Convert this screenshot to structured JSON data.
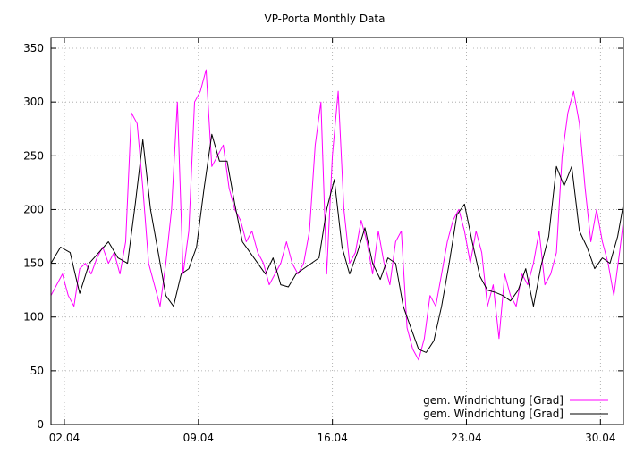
{
  "chart_data": {
    "type": "line",
    "title": "VP-Porta Monthly Data",
    "xlabel": "",
    "ylabel": "",
    "xlim": [
      1.3,
      31.2
    ],
    "ylim": [
      0,
      360
    ],
    "yticks": [
      0,
      50,
      100,
      150,
      200,
      250,
      300,
      350
    ],
    "xticks": [
      {
        "pos": 2,
        "label": "02.04"
      },
      {
        "pos": 9,
        "label": "09.04"
      },
      {
        "pos": 16,
        "label": "16.04"
      },
      {
        "pos": 23,
        "label": "23.04"
      },
      {
        "pos": 30,
        "label": "30.04"
      }
    ],
    "grid": true,
    "legend_position": "bottom-right",
    "series": [
      {
        "name": "gem. Windrichtung [Grad]",
        "color": "#ff00ff",
        "style": "raw",
        "x": [
          1.3,
          1.6,
          1.9,
          2.2,
          2.5,
          2.8,
          3.1,
          3.4,
          3.7,
          4.0,
          4.3,
          4.6,
          4.9,
          5.2,
          5.5,
          5.8,
          6.1,
          6.4,
          6.7,
          7.0,
          7.3,
          7.6,
          7.9,
          8.2,
          8.5,
          8.8,
          9.1,
          9.4,
          9.7,
          10.0,
          10.3,
          10.6,
          10.9,
          11.2,
          11.5,
          11.8,
          12.1,
          12.4,
          12.7,
          13.0,
          13.3,
          13.6,
          13.9,
          14.2,
          14.5,
          14.8,
          15.1,
          15.4,
          15.7,
          16.0,
          16.3,
          16.6,
          16.9,
          17.2,
          17.5,
          17.8,
          18.1,
          18.4,
          18.7,
          19.0,
          19.3,
          19.6,
          19.9,
          20.2,
          20.5,
          20.8,
          21.1,
          21.4,
          21.7,
          22.0,
          22.3,
          22.6,
          22.9,
          23.2,
          23.5,
          23.8,
          24.1,
          24.4,
          24.7,
          25.0,
          25.3,
          25.6,
          25.9,
          26.2,
          26.5,
          26.8,
          27.1,
          27.4,
          27.7,
          28.0,
          28.3,
          28.6,
          28.9,
          29.2,
          29.5,
          29.8,
          30.1,
          30.4,
          30.7,
          31.0,
          31.2
        ],
        "y": [
          120,
          130,
          140,
          120,
          110,
          145,
          150,
          140,
          155,
          165,
          150,
          160,
          140,
          170,
          290,
          280,
          220,
          150,
          130,
          110,
          150,
          200,
          300,
          140,
          180,
          300,
          310,
          330,
          240,
          250,
          260,
          220,
          200,
          190,
          170,
          180,
          160,
          150,
          130,
          140,
          150,
          170,
          150,
          140,
          150,
          180,
          260,
          300,
          140,
          250,
          310,
          200,
          150,
          160,
          190,
          170,
          140,
          180,
          150,
          130,
          170,
          180,
          90,
          70,
          60,
          80,
          120,
          110,
          140,
          170,
          190,
          200,
          180,
          150,
          180,
          160,
          110,
          130,
          80,
          140,
          120,
          110,
          140,
          130,
          150,
          180,
          130,
          140,
          160,
          250,
          290,
          310,
          280,
          220,
          170,
          200,
          170,
          150,
          120,
          160,
          190
        ]
      },
      {
        "name": "gem. Windrichtung [Grad]",
        "color": "#000000",
        "style": "smooth",
        "x": [
          1.3,
          1.8,
          2.3,
          2.8,
          3.3,
          3.8,
          4.3,
          4.8,
          5.3,
          5.7,
          6.1,
          6.5,
          6.9,
          7.3,
          7.7,
          8.1,
          8.5,
          8.9,
          9.3,
          9.7,
          10.1,
          10.5,
          10.9,
          11.3,
          11.7,
          12.1,
          12.5,
          12.9,
          13.3,
          13.7,
          14.1,
          14.5,
          14.9,
          15.3,
          15.7,
          16.1,
          16.5,
          16.9,
          17.3,
          17.7,
          18.1,
          18.5,
          18.9,
          19.3,
          19.7,
          20.1,
          20.5,
          20.9,
          21.3,
          21.7,
          22.1,
          22.5,
          22.9,
          23.3,
          23.7,
          24.1,
          24.5,
          24.9,
          25.3,
          25.7,
          26.1,
          26.5,
          26.9,
          27.3,
          27.7,
          28.1,
          28.5,
          28.9,
          29.3,
          29.7,
          30.1,
          30.5,
          30.9,
          31.2
        ],
        "y": [
          150,
          165,
          160,
          122,
          150,
          160,
          170,
          155,
          150,
          205,
          265,
          200,
          160,
          120,
          110,
          140,
          145,
          165,
          220,
          270,
          245,
          245,
          205,
          170,
          160,
          150,
          140,
          155,
          130,
          128,
          140,
          145,
          150,
          155,
          200,
          228,
          165,
          140,
          160,
          183,
          150,
          135,
          155,
          150,
          110,
          90,
          70,
          67,
          78,
          110,
          150,
          195,
          205,
          170,
          138,
          125,
          123,
          120,
          115,
          125,
          145,
          110,
          148,
          175,
          240,
          222,
          240,
          180,
          165,
          145,
          155,
          150,
          175,
          205
        ]
      }
    ]
  }
}
